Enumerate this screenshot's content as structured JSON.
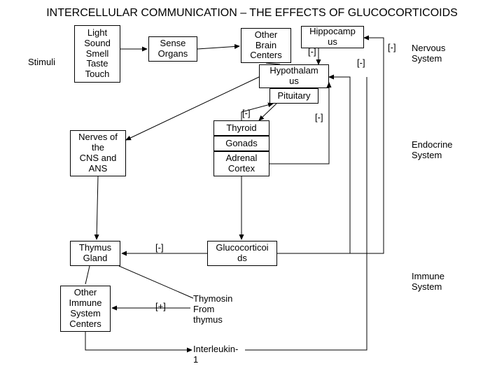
{
  "title": "INTERCELLULAR COMMUNICATION – THE EFFECTS OF GLUCOCORTICOIDS",
  "boxes": {
    "stimuliBox": "Light\nSound\nSmell\nTaste\nTouch",
    "senseOrgans": "Sense\nOrgans",
    "otherBrain": "Other\nBrain\nCenters",
    "hippocampus": "Hippocamp\nus",
    "hypothalamus": "Hypothalam\nus",
    "pituitary": "Pituitary",
    "thyroid": "Thyroid",
    "gonads": "Gonads",
    "adrenal": "Adrenal\nCortex",
    "nerves": "Nerves of\nthe\nCNS and\nANS",
    "thymus": "Thymus\nGland",
    "glucocorticoids": "Glucocorticoi\nds",
    "otherImmune": "Other\nImmune\nSystem\nCenters"
  },
  "labels": {
    "stimuli": "Stimuli",
    "nervousSystem": "Nervous\nSystem",
    "endocrineSystem": "Endocrine\nSystem",
    "immuneSystem": "Immune\nSystem",
    "thymosin": "Thymosin\nFrom\nthymus",
    "interleukin": "Interleukin-\n1"
  },
  "edgeLabels": {
    "neg1": "[-]",
    "neg2": "[-]",
    "neg3": "[-]",
    "neg4": "[-]",
    "neg5": "[-]",
    "neg6": "[-]",
    "pos1": "[+]"
  },
  "style": {
    "stroke": "#000000",
    "strokeWidth": 1,
    "bg": "#ffffff",
    "fontSizeTitle": 16,
    "fontSizeBody": 13
  }
}
